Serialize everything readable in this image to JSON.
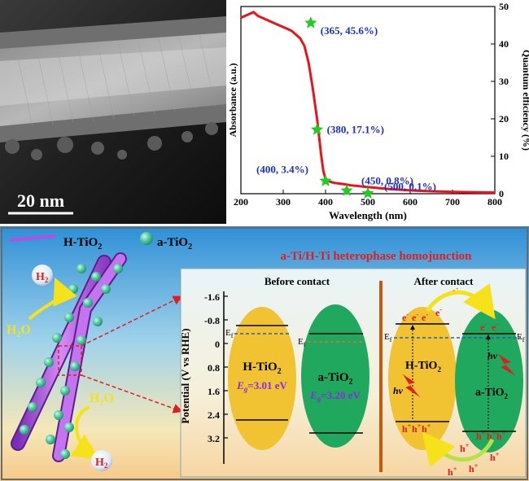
{
  "tem": {
    "scale_bar": "20 nm"
  },
  "chart_data": {
    "type": "line",
    "xlabel": "Wavelength (nm)",
    "ylabel_left": "Absorbance (a.u.)",
    "ylabel_right": "Quantum efficiency (%)",
    "xlim": [
      200,
      800
    ],
    "ylim_right": [
      0,
      50
    ],
    "x_ticks": [
      "200",
      "300",
      "400",
      "500",
      "600",
      "700",
      "800"
    ],
    "y_right_ticks": [
      "0",
      "10",
      "20",
      "30",
      "40",
      "50"
    ],
    "absorbance": {
      "color": "#e8141b",
      "x": [
        200,
        210,
        220,
        230,
        240,
        260,
        280,
        300,
        320,
        340,
        350,
        360,
        370,
        380,
        385,
        390,
        395,
        400,
        405,
        410,
        420,
        440,
        460,
        500,
        550,
        600,
        650,
        700,
        750,
        800
      ],
      "y": [
        0.94,
        0.95,
        0.96,
        0.97,
        0.95,
        0.93,
        0.91,
        0.89,
        0.87,
        0.83,
        0.79,
        0.7,
        0.56,
        0.4,
        0.3,
        0.2,
        0.12,
        0.08,
        0.07,
        0.065,
        0.058,
        0.052,
        0.045,
        0.035,
        0.025,
        0.018,
        0.013,
        0.01,
        0.008,
        0.006
      ]
    },
    "quantum_efficiency": {
      "marker": "star",
      "color": "#22cc22",
      "x": [
        365,
        380,
        400,
        450,
        500
      ],
      "y": [
        45.6,
        17.1,
        3.4,
        0.8,
        0.1
      ],
      "labels": [
        "(365, 45.6%)",
        "(380, 17.1%)",
        "(400, 3.4%)",
        "(450, 0.8%)",
        "(500, 0.1%)"
      ],
      "label_color": "#1a2fd0"
    }
  },
  "schematic": {
    "legend_h": "H-TiO",
    "legend_a": "a-TiO",
    "sub2": "2",
    "h2": "H",
    "h2o": "H",
    "h2o_o": "O",
    "title": "a-Ti/H-Ti heterophase homojunction",
    "before": "Before contact",
    "after": "After contact",
    "potential_axis": "Potential (V vs RHE)",
    "potential_ticks": [
      "-1.6",
      "-0.8",
      "0",
      "0.8",
      "1.6",
      "2.4",
      "3.2"
    ],
    "h_label": "H-TiO",
    "a_label": "a-TiO",
    "eg_h": "=3.01 eV",
    "eg_a": "=3.20 eV",
    "eg_sym": "E",
    "eg_sub": "g",
    "ef": "E",
    "ef_sub": "f",
    "electron": "e",
    "hole": "h",
    "hv": "hv",
    "plus": "+",
    "minus": "-"
  }
}
